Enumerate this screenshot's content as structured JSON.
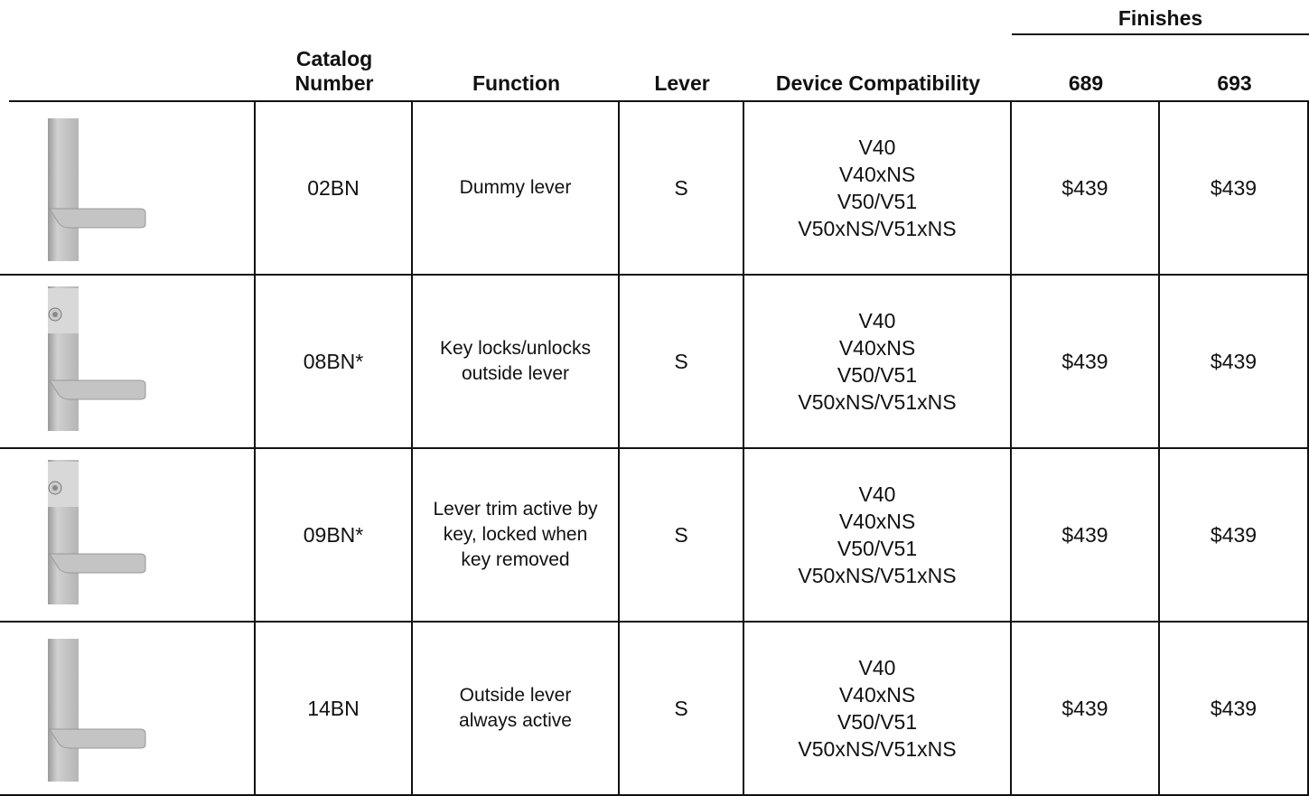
{
  "header": {
    "group": "Finishes",
    "columns": [
      "",
      "Catalog Number",
      "Function",
      "Lever",
      "Device Compatibility",
      "689",
      "693"
    ]
  },
  "rows": [
    {
      "catalog": "02BN",
      "function": [
        "Dummy lever"
      ],
      "lever": "S",
      "compatibility": [
        "V40",
        "V40xNS",
        "V50/V51",
        "V50xNS/V51xNS"
      ],
      "prices": [
        "$439",
        "$439"
      ]
    },
    {
      "catalog": "08BN*",
      "function": [
        "Key locks/unlocks",
        "outside lever"
      ],
      "lever": "S",
      "compatibility": [
        "V40",
        "V40xNS",
        "V50/V51",
        "V50xNS/V51xNS"
      ],
      "prices": [
        "$439",
        "$439"
      ]
    },
    {
      "catalog": "09BN*",
      "function": [
        "Lever trim active by",
        "key, locked when",
        "key removed"
      ],
      "lever": "S",
      "compatibility": [
        "V40",
        "V40xNS",
        "V50/V51",
        "V50xNS/V51xNS"
      ],
      "prices": [
        "$439",
        "$439"
      ]
    },
    {
      "catalog": "14BN",
      "function": [
        "Outside lever",
        "always active"
      ],
      "lever": "S",
      "compatibility": [
        "V40",
        "V40xNS",
        "V50/V51",
        "V50xNS/V51xNS"
      ],
      "prices": [
        "$439",
        "$439"
      ]
    }
  ]
}
